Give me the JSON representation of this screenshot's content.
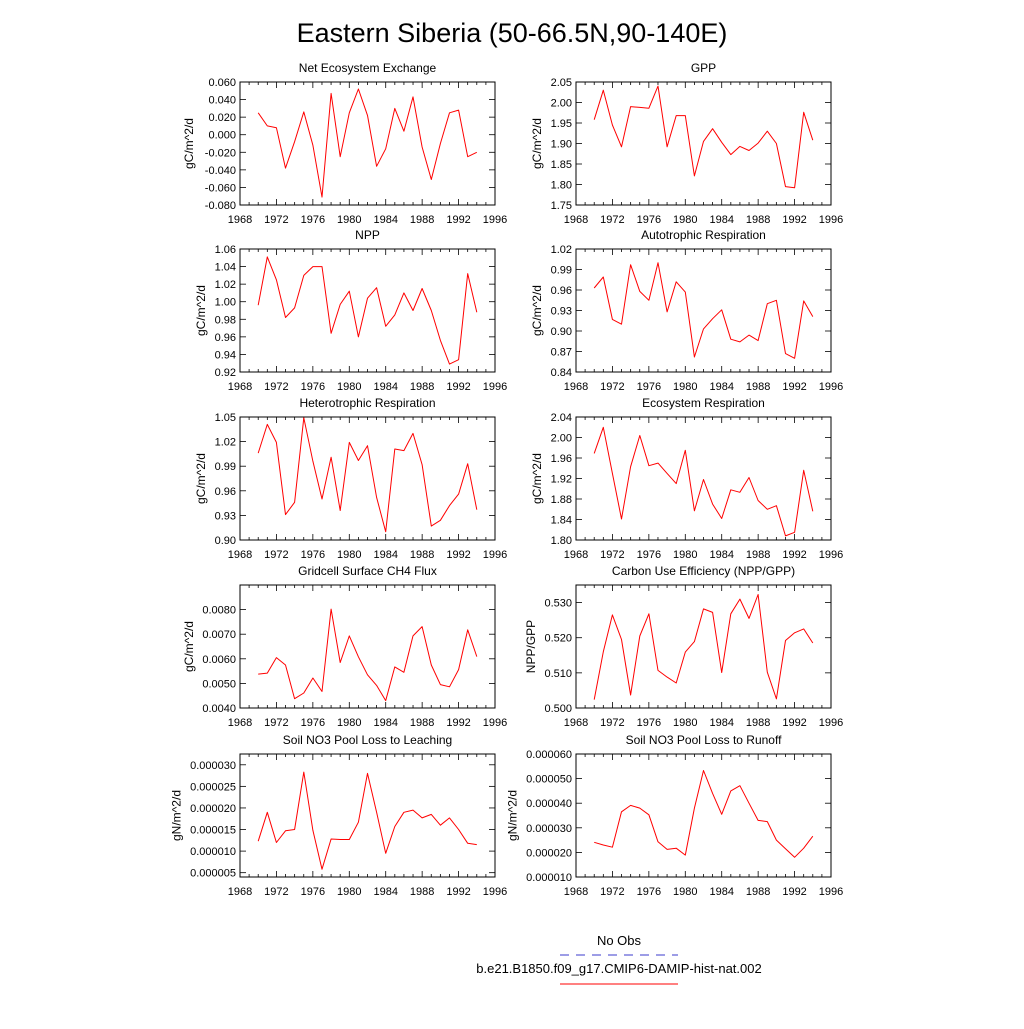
{
  "page_title": "Eastern Siberia (50-66.5N,90-140E)",
  "legend": {
    "items": [
      {
        "label": "No Obs",
        "color": "#3b3bcc",
        "style": "dashed"
      },
      {
        "label": "b.e21.B1850.f09_g17.CMIP6-DAMIP-hist-nat.002",
        "color": "#ff0000",
        "style": "solid"
      }
    ]
  },
  "chart_data": [
    {
      "type": "line",
      "title": "Net Ecosystem Exchange",
      "ylabel": "gC/m^2/d",
      "xlim": [
        1968,
        1996
      ],
      "xticks": [
        1968,
        1972,
        1976,
        1980,
        1984,
        1988,
        1992,
        1996
      ],
      "ylim": [
        -0.08,
        0.06
      ],
      "yticks": [
        "-0.080",
        "-0.060",
        "-0.040",
        "-0.020",
        "0.000",
        "0.020",
        "0.040",
        "0.060"
      ],
      "series": [
        {
          "color": "#ff0000",
          "x": [
            1970,
            1971,
            1972,
            1973,
            1974,
            1975,
            1976,
            1977,
            1978,
            1979,
            1980,
            1981,
            1982,
            1983,
            1984,
            1985,
            1986,
            1987,
            1988,
            1989,
            1990,
            1991,
            1992,
            1993,
            1994
          ],
          "values": [
            0.025,
            0.01,
            0.008,
            -0.038,
            -0.008,
            0.026,
            -0.012,
            -0.071,
            0.047,
            -0.025,
            0.025,
            0.052,
            0.022,
            -0.036,
            -0.016,
            0.03,
            0.004,
            0.043,
            -0.014,
            -0.051,
            -0.01,
            0.025,
            0.028,
            -0.025,
            -0.02
          ]
        }
      ]
    },
    {
      "type": "line",
      "title": "GPP",
      "ylabel": "gC/m^2/d",
      "xlim": [
        1968,
        1996
      ],
      "xticks": [
        1968,
        1972,
        1976,
        1980,
        1984,
        1988,
        1992,
        1996
      ],
      "ylim": [
        1.75,
        2.05
      ],
      "yticks": [
        "1.75",
        "1.80",
        "1.85",
        "1.90",
        "1.95",
        "2.00",
        "2.05"
      ],
      "series": [
        {
          "color": "#ff0000",
          "x": [
            1970,
            1971,
            1972,
            1973,
            1974,
            1975,
            1976,
            1977,
            1978,
            1979,
            1980,
            1981,
            1982,
            1983,
            1984,
            1985,
            1986,
            1987,
            1988,
            1989,
            1990,
            1991,
            1992,
            1993,
            1994
          ],
          "values": [
            1.958,
            2.03,
            1.945,
            1.892,
            1.99,
            1.988,
            1.986,
            2.04,
            1.892,
            1.968,
            1.968,
            1.821,
            1.905,
            1.936,
            1.903,
            1.873,
            1.893,
            1.883,
            1.901,
            1.93,
            1.9,
            1.795,
            1.792,
            1.976,
            1.908
          ]
        }
      ]
    },
    {
      "type": "line",
      "title": "NPP",
      "ylabel": "gC/m^2/d",
      "xlim": [
        1968,
        1996
      ],
      "xticks": [
        1968,
        1972,
        1976,
        1980,
        1984,
        1988,
        1992,
        1996
      ],
      "ylim": [
        0.92,
        1.06
      ],
      "yticks": [
        "0.92",
        "0.94",
        "0.96",
        "0.98",
        "1.00",
        "1.02",
        "1.04",
        "1.06"
      ],
      "series": [
        {
          "color": "#ff0000",
          "x": [
            1970,
            1971,
            1972,
            1973,
            1974,
            1975,
            1976,
            1977,
            1978,
            1979,
            1980,
            1981,
            1982,
            1983,
            1984,
            1985,
            1986,
            1987,
            1988,
            1989,
            1990,
            1991,
            1992,
            1993,
            1994
          ],
          "values": [
            0.996,
            1.051,
            1.025,
            0.982,
            0.993,
            1.03,
            1.04,
            1.04,
            0.964,
            0.997,
            1.012,
            0.96,
            1.004,
            1.016,
            0.972,
            0.985,
            1.01,
            0.99,
            1.015,
            0.99,
            0.956,
            0.929,
            0.934,
            1.032,
            0.988
          ]
        }
      ]
    },
    {
      "type": "line",
      "title": "Autotrophic Respiration",
      "ylabel": "gC/m^2/d",
      "xlim": [
        1968,
        1996
      ],
      "xticks": [
        1968,
        1972,
        1976,
        1980,
        1984,
        1988,
        1992,
        1996
      ],
      "ylim": [
        0.84,
        1.02
      ],
      "yticks": [
        "0.84",
        "0.87",
        "0.90",
        "0.93",
        "0.96",
        "0.99",
        "1.02"
      ],
      "series": [
        {
          "color": "#ff0000",
          "x": [
            1970,
            1971,
            1972,
            1973,
            1974,
            1975,
            1976,
            1977,
            1978,
            1979,
            1980,
            1981,
            1982,
            1983,
            1984,
            1985,
            1986,
            1987,
            1988,
            1989,
            1990,
            1991,
            1992,
            1993,
            1994
          ],
          "values": [
            0.963,
            0.979,
            0.917,
            0.91,
            0.997,
            0.958,
            0.945,
            1.0,
            0.928,
            0.972,
            0.957,
            0.862,
            0.903,
            0.918,
            0.931,
            0.888,
            0.884,
            0.894,
            0.886,
            0.94,
            0.945,
            0.867,
            0.86,
            0.944,
            0.921
          ]
        }
      ]
    },
    {
      "type": "line",
      "title": "Heterotrophic Respiration",
      "ylabel": "gC/m^2/d",
      "xlim": [
        1968,
        1996
      ],
      "xticks": [
        1968,
        1972,
        1976,
        1980,
        1984,
        1988,
        1992,
        1996
      ],
      "ylim": [
        0.9,
        1.05
      ],
      "yticks": [
        "0.90",
        "0.93",
        "0.96",
        "0.99",
        "1.02",
        "1.05"
      ],
      "series": [
        {
          "color": "#ff0000",
          "x": [
            1970,
            1971,
            1972,
            1973,
            1974,
            1975,
            1976,
            1977,
            1978,
            1979,
            1980,
            1981,
            1982,
            1983,
            1984,
            1985,
            1986,
            1987,
            1988,
            1989,
            1990,
            1991,
            1992,
            1993,
            1994
          ],
          "values": [
            1.006,
            1.041,
            1.019,
            0.931,
            0.946,
            1.049,
            0.996,
            0.95,
            1.001,
            0.936,
            1.019,
            0.997,
            1.015,
            0.952,
            0.91,
            1.011,
            1.009,
            1.03,
            0.992,
            0.917,
            0.924,
            0.942,
            0.956,
            0.993,
            0.937
          ]
        }
      ]
    },
    {
      "type": "line",
      "title": "Ecosystem Respiration",
      "ylabel": "gC/m^2/d",
      "xlim": [
        1968,
        1996
      ],
      "xticks": [
        1968,
        1972,
        1976,
        1980,
        1984,
        1988,
        1992,
        1996
      ],
      "ylim": [
        1.8,
        2.04
      ],
      "yticks": [
        "1.80",
        "1.84",
        "1.88",
        "1.92",
        "1.96",
        "2.00",
        "2.04"
      ],
      "series": [
        {
          "color": "#ff0000",
          "x": [
            1970,
            1971,
            1972,
            1973,
            1974,
            1975,
            1976,
            1977,
            1978,
            1979,
            1980,
            1981,
            1982,
            1983,
            1984,
            1985,
            1986,
            1987,
            1988,
            1989,
            1990,
            1991,
            1992,
            1993,
            1994
          ],
          "values": [
            1.969,
            2.02,
            1.93,
            1.841,
            1.943,
            2.004,
            1.945,
            1.95,
            1.93,
            1.91,
            1.975,
            1.857,
            1.918,
            1.87,
            1.842,
            1.898,
            1.893,
            1.922,
            1.877,
            1.86,
            1.867,
            1.808,
            1.815,
            1.936,
            1.856
          ]
        }
      ]
    },
    {
      "type": "line",
      "title": "Gridcell Surface CH4 Flux",
      "ylabel": "gC/m^2/d",
      "xlim": [
        1968,
        1996
      ],
      "xticks": [
        1968,
        1972,
        1976,
        1980,
        1984,
        1988,
        1992,
        1996
      ],
      "ylim": [
        0.004,
        0.009
      ],
      "yticks": [
        "0.0040",
        "0.0050",
        "0.0060",
        "0.0070",
        "0.0080"
      ],
      "series": [
        {
          "color": "#ff0000",
          "x": [
            1970,
            1971,
            1972,
            1973,
            1974,
            1975,
            1976,
            1977,
            1978,
            1979,
            1980,
            1981,
            1982,
            1983,
            1984,
            1985,
            1986,
            1987,
            1988,
            1989,
            1990,
            1991,
            1992,
            1993,
            1994
          ],
          "values": [
            0.00538,
            0.00542,
            0.00605,
            0.00575,
            0.00438,
            0.00461,
            0.00522,
            0.00467,
            0.00802,
            0.00585,
            0.00693,
            0.00608,
            0.00535,
            0.00492,
            0.0043,
            0.00567,
            0.00545,
            0.00693,
            0.00731,
            0.00575,
            0.00495,
            0.00486,
            0.00556,
            0.00718,
            0.00609
          ]
        }
      ]
    },
    {
      "type": "line",
      "title": "Carbon Use Efficiency (NPP/GPP)",
      "ylabel": "NPP/GPP",
      "xlim": [
        1968,
        1996
      ],
      "xticks": [
        1968,
        1972,
        1976,
        1980,
        1984,
        1988,
        1992,
        1996
      ],
      "ylim": [
        0.5,
        0.535
      ],
      "yticks": [
        "0.500",
        "0.510",
        "0.520",
        "0.530"
      ],
      "series": [
        {
          "color": "#ff0000",
          "x": [
            1970,
            1971,
            1972,
            1973,
            1974,
            1975,
            1976,
            1977,
            1978,
            1979,
            1980,
            1981,
            1982,
            1983,
            1984,
            1985,
            1986,
            1987,
            1988,
            1989,
            1990,
            1991,
            1992,
            1993,
            1994
          ],
          "values": [
            0.5024,
            0.516,
            0.5265,
            0.5195,
            0.5037,
            0.5205,
            0.5268,
            0.5107,
            0.5088,
            0.5071,
            0.5159,
            0.5189,
            0.5282,
            0.5272,
            0.5101,
            0.5268,
            0.531,
            0.5255,
            0.5323,
            0.5102,
            0.5026,
            0.5192,
            0.5214,
            0.5225,
            0.5185
          ]
        }
      ]
    },
    {
      "type": "line",
      "title": "Soil NO3 Pool Loss to Leaching",
      "ylabel": "gN/m^2/d",
      "xlim": [
        1968,
        1996
      ],
      "xticks": [
        1968,
        1972,
        1976,
        1980,
        1984,
        1988,
        1992,
        1996
      ],
      "ylim": [
        4e-06,
        3.25e-05
      ],
      "yticks": [
        "0.000005",
        "0.000010",
        "0.000015",
        "0.000020",
        "0.000025",
        "0.000030"
      ],
      "series": [
        {
          "color": "#ff0000",
          "x": [
            1970,
            1971,
            1972,
            1973,
            1974,
            1975,
            1976,
            1977,
            1978,
            1979,
            1980,
            1981,
            1982,
            1983,
            1984,
            1985,
            1986,
            1987,
            1988,
            1989,
            1990,
            1991,
            1992,
            1993,
            1994
          ],
          "values": [
            1.23e-05,
            1.9e-05,
            1.2e-05,
            1.47e-05,
            1.5e-05,
            2.83e-05,
            1.48e-05,
            5.8e-06,
            1.28e-05,
            1.27e-05,
            1.27e-05,
            1.67e-05,
            2.8e-05,
            1.9e-05,
            9.5e-06,
            1.57e-05,
            1.9e-05,
            1.95e-05,
            1.77e-05,
            1.85e-05,
            1.6e-05,
            1.77e-05,
            1.5e-05,
            1.18e-05,
            1.15e-05
          ]
        }
      ]
    },
    {
      "type": "line",
      "title": "Soil NO3 Pool Loss to Runoff",
      "ylabel": "gN/m^2/d",
      "xlim": [
        1968,
        1996
      ],
      "xticks": [
        1968,
        1972,
        1976,
        1980,
        1984,
        1988,
        1992,
        1996
      ],
      "ylim": [
        1e-05,
        6e-05
      ],
      "yticks": [
        "0.000010",
        "0.000020",
        "0.000030",
        "0.000040",
        "0.000050",
        "0.000060"
      ],
      "series": [
        {
          "color": "#ff0000",
          "x": [
            1970,
            1971,
            1972,
            1973,
            1974,
            1975,
            1976,
            1977,
            1978,
            1979,
            1980,
            1981,
            1982,
            1983,
            1984,
            1985,
            1986,
            1987,
            1988,
            1989,
            1990,
            1991,
            1992,
            1993,
            1994
          ],
          "values": [
            2.41e-05,
            2.3e-05,
            2.21e-05,
            3.65e-05,
            3.91e-05,
            3.8e-05,
            3.53e-05,
            2.43e-05,
            2.12e-05,
            2.17e-05,
            1.89e-05,
            3.8e-05,
            5.33e-05,
            4.4e-05,
            3.55e-05,
            4.5e-05,
            4.71e-05,
            4e-05,
            3.3e-05,
            3.25e-05,
            2.5e-05,
            2.15e-05,
            1.8e-05,
            2.17e-05,
            2.66e-05
          ]
        }
      ]
    }
  ]
}
